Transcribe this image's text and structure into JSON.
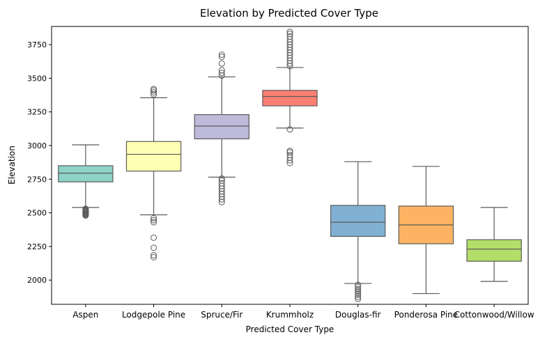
{
  "chart_data": {
    "type": "boxplot",
    "title": "Elevation by Predicted Cover Type",
    "xlabel": "Predicted Cover Type",
    "ylabel": "Elevation",
    "ylim": [
      1820,
      3885
    ],
    "yticks": [
      2000,
      2250,
      2500,
      2750,
      3000,
      3250,
      3500,
      3750
    ],
    "grid": false,
    "legend": "none",
    "categories": [
      "Aspen",
      "Lodgepole Pine",
      "Spruce/Fir",
      "Krummholz",
      "Douglas-fir",
      "Ponderosa Pine",
      "Cottonwood/Willow"
    ],
    "series": [
      {
        "category": "Aspen",
        "color": "#8dd3c7",
        "whisker_low": 2540,
        "q1": 2730,
        "median": 2795,
        "q3": 2850,
        "whisker_high": 3005,
        "outliers": [
          2480,
          2485,
          2490,
          2495,
          2500,
          2505,
          2510,
          2515,
          2520,
          2525,
          2530
        ]
      },
      {
        "category": "Lodgepole Pine",
        "color": "#ffffb3",
        "whisker_low": 2485,
        "q1": 2810,
        "median": 2935,
        "q3": 3030,
        "whisker_high": 3355,
        "outliers": [
          2170,
          2185,
          2240,
          2315,
          2430,
          2445,
          2460,
          3380,
          3395,
          3410,
          3420
        ]
      },
      {
        "category": "Spruce/Fir",
        "color": "#bebada",
        "whisker_low": 2765,
        "q1": 3050,
        "median": 3145,
        "q3": 3230,
        "whisker_high": 3510,
        "outliers": [
          2580,
          2600,
          2620,
          2640,
          2660,
          2680,
          2700,
          2720,
          2740,
          2755,
          3520,
          3540,
          3560,
          3610,
          3660,
          3675
        ]
      },
      {
        "category": "Krummholz",
        "color": "#fb8072",
        "whisker_low": 3130,
        "q1": 3295,
        "median": 3365,
        "q3": 3410,
        "whisker_high": 3580,
        "outliers": [
          2870,
          2890,
          2910,
          2930,
          2950,
          2960,
          3120,
          3590,
          3610,
          3630,
          3650,
          3670,
          3690,
          3710,
          3730,
          3750,
          3770,
          3790,
          3810,
          3830,
          3845
        ]
      },
      {
        "category": "Douglas-fir",
        "color": "#80b1d3",
        "whisker_low": 1975,
        "q1": 2325,
        "median": 2430,
        "q3": 2555,
        "whisker_high": 2880,
        "outliers": [
          1860,
          1875,
          1890,
          1905,
          1920,
          1935,
          1950,
          1965
        ]
      },
      {
        "category": "Ponderosa Pine",
        "color": "#fdb462",
        "whisker_low": 1900,
        "q1": 2270,
        "median": 2410,
        "q3": 2550,
        "whisker_high": 2845,
        "outliers": []
      },
      {
        "category": "Cottonwood/Willow",
        "color": "#b3de69",
        "whisker_low": 1990,
        "q1": 2140,
        "median": 2230,
        "q3": 2300,
        "whisker_high": 2540,
        "outliers": []
      }
    ]
  }
}
